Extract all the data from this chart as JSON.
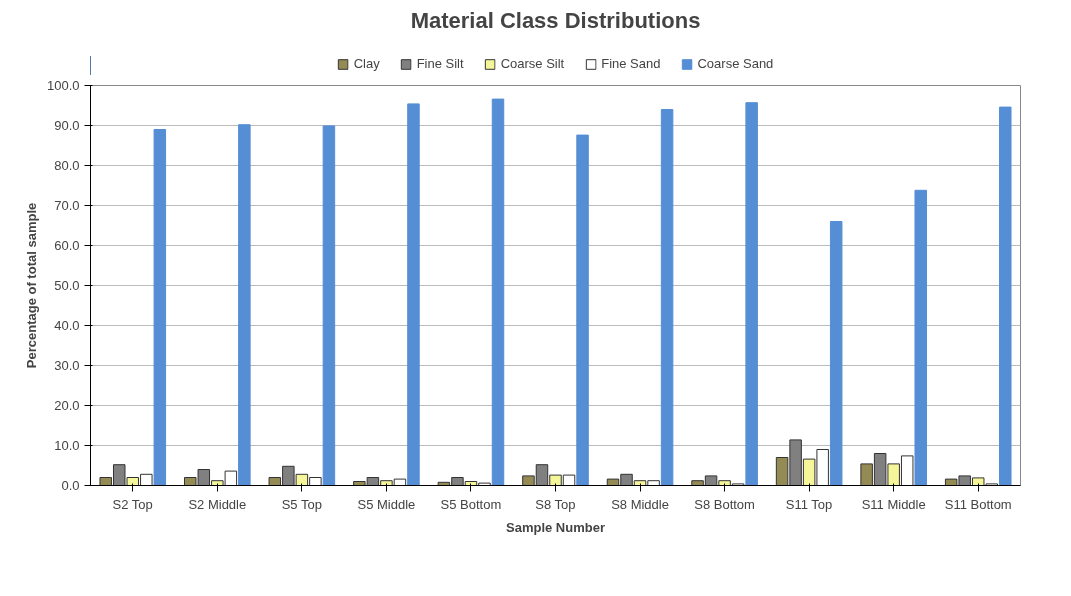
{
  "chart_data": {
    "type": "bar",
    "title": "Material Class Distributions",
    "xlabel": "Sample Number",
    "ylabel": "Percentage of total sample",
    "categories": [
      "S2 Top",
      "S2 Middle",
      "S5 Top",
      "S5 Middle",
      "S5 Bottom",
      "S8 Top",
      "S8 Middle",
      "S8 Bottom",
      "S11 Top",
      "S11 Middle",
      "S11 Bottom"
    ],
    "series": [
      {
        "name": "Clay",
        "color": "#948a54",
        "values": [
          2.0,
          2.0,
          2.0,
          1.0,
          0.8,
          2.4,
          1.6,
          1.2,
          7.0,
          5.4,
          1.6
        ]
      },
      {
        "name": "Fine Silt",
        "color": "#808080",
        "values": [
          5.2,
          4.0,
          4.8,
          2.0,
          2.0,
          5.2,
          2.8,
          2.4,
          11.4,
          8.0,
          2.4
        ]
      },
      {
        "name": "Coarse Silt",
        "color": "#f5f59a",
        "values": [
          2.0,
          1.2,
          2.8,
          1.2,
          1.0,
          2.6,
          1.2,
          1.2,
          6.6,
          5.4,
          1.9
        ]
      },
      {
        "name": "Fine Sand",
        "color": "#ffffff",
        "values": [
          2.8,
          3.6,
          2.0,
          1.6,
          0.6,
          2.6,
          1.2,
          0.4,
          9.0,
          7.4,
          0.4
        ]
      },
      {
        "name": "Coarse Sand",
        "color": "#558ed5",
        "values": [
          89.0,
          90.2,
          89.9,
          95.4,
          96.6,
          87.6,
          94.0,
          95.7,
          66.0,
          73.8,
          94.6
        ]
      }
    ],
    "ylim": [
      0,
      100
    ],
    "yticks": [
      {
        "value": 0,
        "label": "0.0"
      },
      {
        "value": 10,
        "label": "10.0"
      },
      {
        "value": 20,
        "label": "20.0"
      },
      {
        "value": 30,
        "label": "30.0"
      },
      {
        "value": 40,
        "label": "40.0"
      },
      {
        "value": 50,
        "label": "50.0"
      },
      {
        "value": 60,
        "label": "60.0"
      },
      {
        "value": 70,
        "label": "70.0"
      },
      {
        "value": 80,
        "label": "80.0"
      },
      {
        "value": 90,
        "label": "90.0"
      },
      {
        "value": 100,
        "label": "100.0"
      }
    ],
    "grid": "y",
    "legend": "top"
  }
}
